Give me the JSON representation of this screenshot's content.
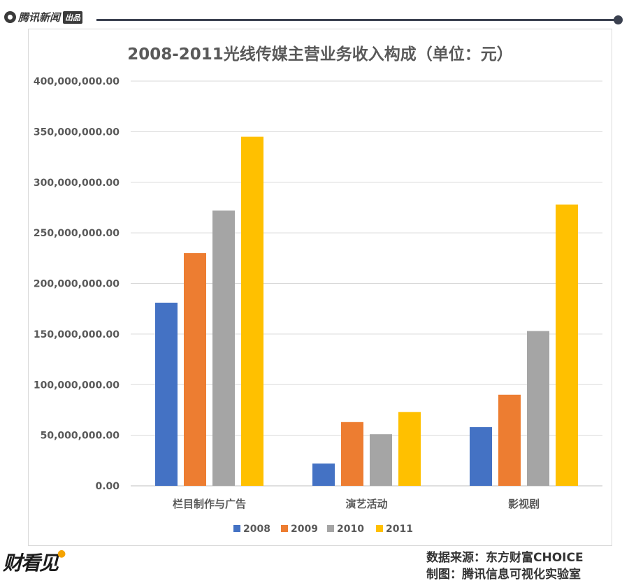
{
  "header": {
    "brand": "腾讯新闻",
    "brand_tag": "出品"
  },
  "footer": {
    "logo_text": "财看见",
    "source": "数据来源：东方财富CHOICE",
    "credit": "制图：腾讯信息可视化实验室"
  },
  "colors": {
    "2008": "#4472c4",
    "2009": "#ed7d31",
    "2010": "#a5a5a5",
    "2011": "#ffc000"
  },
  "chart_data": {
    "type": "bar",
    "title": "2008-2011光线传媒主营业务收入构成（单位：元）",
    "xlabel": "",
    "ylabel": "",
    "ylim": [
      0,
      400000000
    ],
    "ytick_values": [
      0,
      50000000,
      100000000,
      150000000,
      200000000,
      250000000,
      300000000,
      350000000,
      400000000
    ],
    "ytick_labels": [
      "0.00",
      "50,000,000.00",
      "100,000,000.00",
      "150,000,000.00",
      "200,000,000.00",
      "250,000,000.00",
      "300,000,000.00",
      "350,000,000.00",
      "400,000,000.00"
    ],
    "grid": true,
    "legend_position": "bottom",
    "categories": [
      "栏目制作与广告",
      "演艺活动",
      "影视剧"
    ],
    "series": [
      {
        "name": "2008",
        "values": [
          181000000,
          22000000,
          58000000
        ]
      },
      {
        "name": "2009",
        "values": [
          230000000,
          63000000,
          90000000
        ]
      },
      {
        "name": "2010",
        "values": [
          272000000,
          51000000,
          153000000
        ]
      },
      {
        "name": "2011",
        "values": [
          345000000,
          73000000,
          278000000
        ]
      }
    ]
  }
}
